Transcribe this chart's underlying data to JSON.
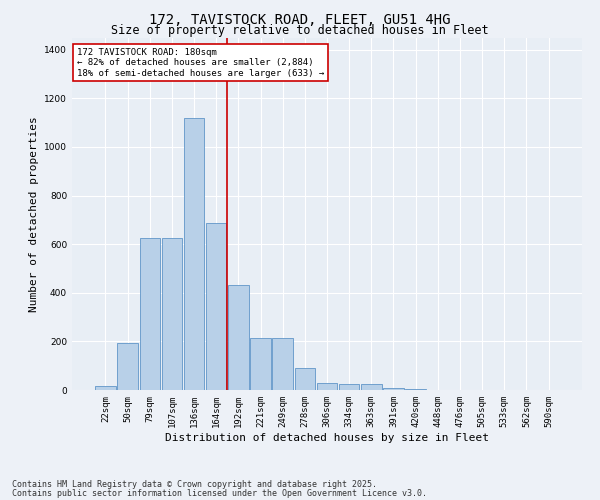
{
  "title_line1": "172, TAVISTOCK ROAD, FLEET, GU51 4HG",
  "title_line2": "Size of property relative to detached houses in Fleet",
  "xlabel": "Distribution of detached houses by size in Fleet",
  "ylabel": "Number of detached properties",
  "categories": [
    "22sqm",
    "50sqm",
    "79sqm",
    "107sqm",
    "136sqm",
    "164sqm",
    "192sqm",
    "221sqm",
    "249sqm",
    "278sqm",
    "306sqm",
    "334sqm",
    "363sqm",
    "391sqm",
    "420sqm",
    "448sqm",
    "476sqm",
    "505sqm",
    "533sqm",
    "562sqm",
    "590sqm"
  ],
  "values": [
    15,
    195,
    625,
    625,
    1120,
    685,
    430,
    215,
    215,
    90,
    30,
    25,
    25,
    10,
    5,
    2,
    1,
    0,
    0,
    0,
    0
  ],
  "bar_color": "#b8d0e8",
  "bar_edge_color": "#6096c8",
  "vline_x_idx": 5.5,
  "vline_color": "#cc0000",
  "annotation_text": "172 TAVISTOCK ROAD: 180sqm\n← 82% of detached houses are smaller (2,884)\n18% of semi-detached houses are larger (633) →",
  "annotation_box_color": "#ffffff",
  "annotation_box_edge": "#cc0000",
  "ylim": [
    0,
    1450
  ],
  "yticks": [
    0,
    200,
    400,
    600,
    800,
    1000,
    1200,
    1400
  ],
  "background_color": "#e8eef5",
  "fig_background_color": "#edf1f7",
  "grid_color": "#ffffff",
  "footer_line1": "Contains HM Land Registry data © Crown copyright and database right 2025.",
  "footer_line2": "Contains public sector information licensed under the Open Government Licence v3.0.",
  "title_fontsize": 10,
  "subtitle_fontsize": 8.5,
  "ylabel_fontsize": 8,
  "xlabel_fontsize": 8,
  "tick_fontsize": 6.5,
  "annot_fontsize": 6.5,
  "footer_fontsize": 6
}
